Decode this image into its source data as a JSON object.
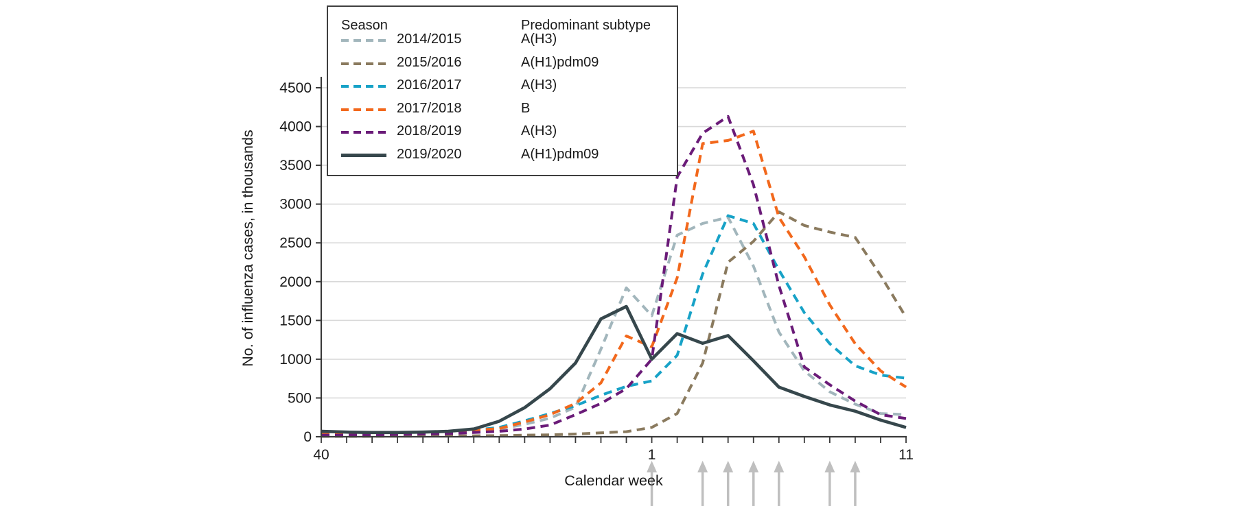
{
  "chart_data": {
    "type": "line",
    "title": "",
    "xlabel": "Calendar week",
    "ylabel": "No. of influenza cases, in thousands",
    "ylim": [
      0,
      4500
    ],
    "yticks": [
      0,
      500,
      1000,
      1500,
      2000,
      2500,
      3000,
      3500,
      4000,
      4500
    ],
    "x_categories": [
      "40",
      "41",
      "42",
      "43",
      "44",
      "45",
      "46",
      "47",
      "48",
      "49",
      "50",
      "51",
      "52",
      "1",
      "2",
      "3",
      "4",
      "5",
      "6",
      "7",
      "8",
      "9",
      "10",
      "11"
    ],
    "x_labeled_ticks": [
      "40",
      "1",
      "11"
    ],
    "grid": "horizontal",
    "legend": {
      "position": "top-left",
      "season_header": "Season",
      "subtype_header": "Predominant subtype"
    },
    "series": [
      {
        "name": "2014/2015",
        "subtype": "A(H3)",
        "color": "#a2b6bc",
        "dashed": true,
        "values": [
          25,
          25,
          30,
          35,
          40,
          55,
          70,
          100,
          160,
          240,
          380,
          1130,
          1920,
          1560,
          2600,
          2750,
          2830,
          2200,
          1350,
          850,
          580,
          420,
          300,
          285
        ]
      },
      {
        "name": "2015/2016",
        "subtype": "A(H1)pdm09",
        "color": "#8a7a5e",
        "dashed": true,
        "values": [
          5,
          5,
          6,
          8,
          8,
          10,
          12,
          15,
          20,
          25,
          35,
          50,
          65,
          120,
          300,
          950,
          2250,
          2520,
          2900,
          2725,
          2640,
          2570,
          2080,
          1540
        ]
      },
      {
        "name": "2016/2017",
        "subtype": "A(H3)",
        "color": "#17a2c7",
        "dashed": true,
        "values": [
          30,
          30,
          35,
          40,
          50,
          65,
          85,
          120,
          205,
          300,
          400,
          535,
          650,
          720,
          1050,
          2100,
          2850,
          2750,
          2150,
          1600,
          1200,
          915,
          795,
          755
        ]
      },
      {
        "name": "2017/2018",
        "subtype": "B",
        "color": "#f2681c",
        "dashed": true,
        "values": [
          30,
          30,
          35,
          45,
          55,
          70,
          85,
          105,
          190,
          285,
          430,
          695,
          1300,
          1160,
          2050,
          3780,
          3820,
          3940,
          2830,
          2320,
          1700,
          1200,
          850,
          640
        ]
      },
      {
        "name": "2018/2019",
        "subtype": "A(H3)",
        "color": "#6a1b78",
        "dashed": true,
        "values": [
          20,
          20,
          25,
          30,
          35,
          40,
          55,
          70,
          100,
          150,
          285,
          430,
          620,
          1000,
          3350,
          3915,
          4130,
          3250,
          1950,
          900,
          670,
          460,
          285,
          235
        ]
      },
      {
        "name": "2019/2020",
        "subtype": "A(H1)pdm09",
        "color": "#36474c",
        "dashed": false,
        "values": [
          70,
          60,
          55,
          55,
          60,
          70,
          100,
          200,
          375,
          620,
          950,
          1520,
          1680,
          1000,
          1330,
          1205,
          1305,
          980,
          640,
          520,
          410,
          330,
          215,
          120
        ]
      }
    ],
    "annotations": {
      "arrow_weeks": [
        "1",
        "3",
        "4",
        "5",
        "6",
        "8",
        "9"
      ],
      "arrow_color": "#bfbfbf",
      "arrow_direction": "up"
    }
  },
  "colors": {
    "axis": "#3a3a3a",
    "grid": "#d9d9d9",
    "text": "#1a1a1a",
    "background": "#ffffff"
  }
}
